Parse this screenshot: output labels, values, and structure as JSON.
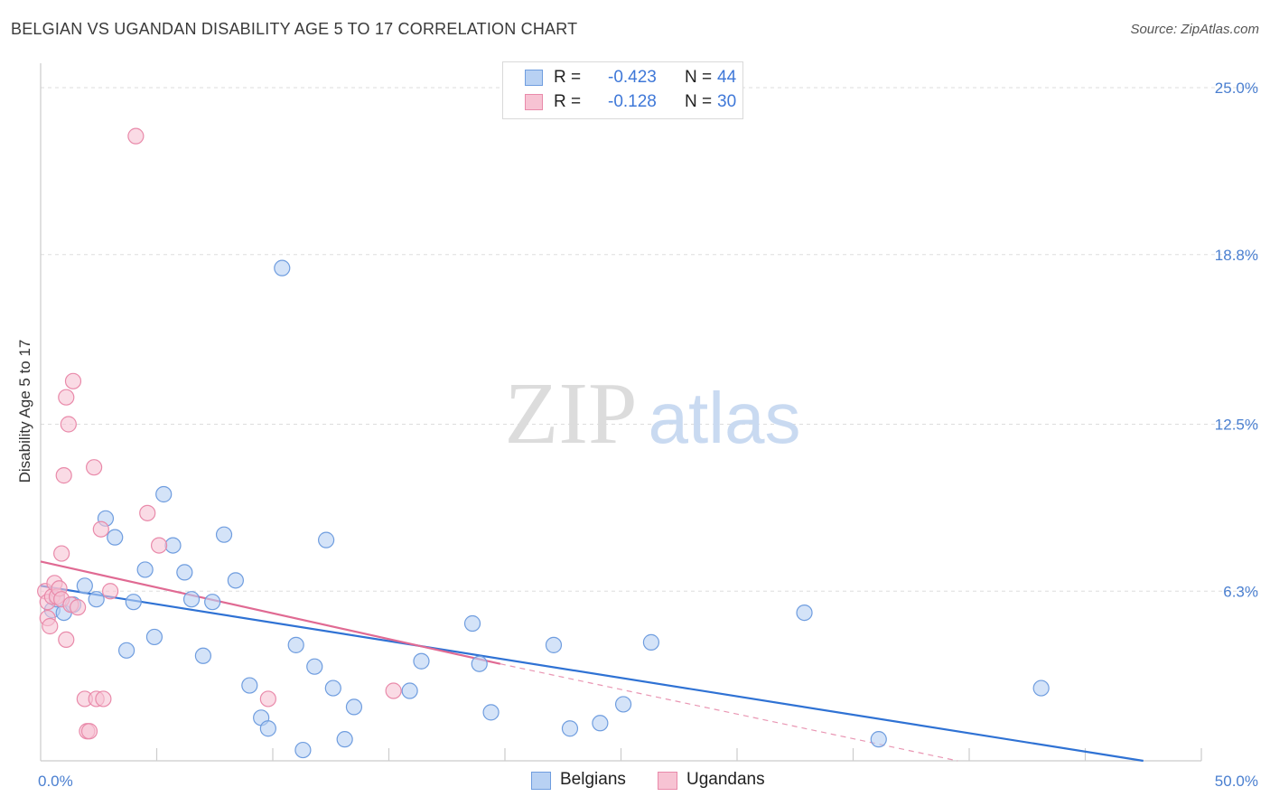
{
  "title": "BELGIAN VS UGANDAN DISABILITY AGE 5 TO 17 CORRELATION CHART",
  "source": "Source: ZipAtlas.com",
  "watermark": {
    "zip": "ZIP",
    "atlas": "atlas"
  },
  "colors": {
    "blue_fill": "#b8d1f3",
    "blue_stroke": "#6f9ddf",
    "blue_line": "#2f72d4",
    "pink_fill": "#f7c3d3",
    "pink_stroke": "#e98aaa",
    "pink_line": "#e06a93",
    "tick_text": "#4a7fd0"
  },
  "legend": {
    "rows": [
      {
        "r_label": "R =",
        "r_value": "-0.423",
        "n_label": "N =",
        "n_value": "44"
      },
      {
        "r_label": "R =",
        "r_value": "-0.128",
        "n_label": "N =",
        "n_value": "30"
      }
    ]
  },
  "bottom_legend": {
    "belgians": "Belgians",
    "ugandans": "Ugandans"
  },
  "chart_data": {
    "type": "scatter",
    "title": "BELGIAN VS UGANDAN DISABILITY AGE 5 TO 17 CORRELATION CHART",
    "xlabel": "",
    "ylabel": "Disability Age 5 to 17",
    "xlim": [
      0,
      50
    ],
    "ylim": [
      0,
      25.5
    ],
    "x_tick_labels": [
      {
        "value": 0,
        "label": "0.0%"
      },
      {
        "value": 50,
        "label": "50.0%"
      }
    ],
    "y_tick_labels": [
      {
        "value": 6.3,
        "label": "6.3%"
      },
      {
        "value": 12.5,
        "label": "12.5%"
      },
      {
        "value": 18.8,
        "label": "18.8%"
      },
      {
        "value": 25.0,
        "label": "25.0%"
      }
    ],
    "x_minor_ticks": [
      5,
      10,
      15,
      20,
      25,
      30,
      35,
      40,
      45,
      50
    ],
    "series": [
      {
        "name": "Belgians",
        "r": -0.423,
        "n": 44,
        "trend": {
          "x0": 0,
          "y0": 6.5,
          "x1": 47.5,
          "y1": 0.0
        },
        "points": [
          [
            0.5,
            5.6
          ],
          [
            0.7,
            6.0
          ],
          [
            1.0,
            5.5
          ],
          [
            1.4,
            5.8
          ],
          [
            1.9,
            6.5
          ],
          [
            2.4,
            6.0
          ],
          [
            2.8,
            9.0
          ],
          [
            3.2,
            8.3
          ],
          [
            3.7,
            4.1
          ],
          [
            4.0,
            5.9
          ],
          [
            4.5,
            7.1
          ],
          [
            4.9,
            4.6
          ],
          [
            5.3,
            9.9
          ],
          [
            5.7,
            8.0
          ],
          [
            6.2,
            7.0
          ],
          [
            6.5,
            6.0
          ],
          [
            7.0,
            3.9
          ],
          [
            7.4,
            5.9
          ],
          [
            7.9,
            8.4
          ],
          [
            8.4,
            6.7
          ],
          [
            9.0,
            2.8
          ],
          [
            9.5,
            1.6
          ],
          [
            9.8,
            1.2
          ],
          [
            10.4,
            18.3
          ],
          [
            11.0,
            4.3
          ],
          [
            11.3,
            0.4
          ],
          [
            11.8,
            3.5
          ],
          [
            12.3,
            8.2
          ],
          [
            12.6,
            2.7
          ],
          [
            13.1,
            0.8
          ],
          [
            13.5,
            2.0
          ],
          [
            15.9,
            2.6
          ],
          [
            16.4,
            3.7
          ],
          [
            18.6,
            5.1
          ],
          [
            18.9,
            3.6
          ],
          [
            19.4,
            1.8
          ],
          [
            22.1,
            4.3
          ],
          [
            22.8,
            1.2
          ],
          [
            24.1,
            1.4
          ],
          [
            25.1,
            2.1
          ],
          [
            26.3,
            4.4
          ],
          [
            32.9,
            5.5
          ],
          [
            36.1,
            0.8
          ],
          [
            43.1,
            2.7
          ]
        ]
      },
      {
        "name": "Ugandans",
        "r": -0.128,
        "n": 30,
        "trend": {
          "x0": 0,
          "y0": 7.4,
          "x1": 19.8,
          "y1": 3.6
        },
        "trend_dashed": {
          "x0": 19.8,
          "y0": 3.6,
          "x1": 39.5,
          "y1": 0.0
        },
        "points": [
          [
            0.2,
            6.3
          ],
          [
            0.3,
            5.9
          ],
          [
            0.3,
            5.3
          ],
          [
            0.4,
            5.0
          ],
          [
            0.5,
            6.1
          ],
          [
            0.6,
            6.6
          ],
          [
            0.7,
            6.1
          ],
          [
            0.8,
            6.4
          ],
          [
            0.9,
            6.0
          ],
          [
            0.9,
            7.7
          ],
          [
            1.0,
            10.6
          ],
          [
            1.1,
            13.5
          ],
          [
            1.2,
            12.5
          ],
          [
            1.1,
            4.5
          ],
          [
            1.3,
            5.8
          ],
          [
            1.4,
            14.1
          ],
          [
            1.6,
            5.7
          ],
          [
            1.9,
            2.3
          ],
          [
            2.0,
            1.1
          ],
          [
            2.1,
            1.1
          ],
          [
            2.3,
            10.9
          ],
          [
            2.4,
            2.3
          ],
          [
            2.6,
            8.6
          ],
          [
            2.7,
            2.3
          ],
          [
            3.0,
            6.3
          ],
          [
            4.1,
            23.2
          ],
          [
            4.6,
            9.2
          ],
          [
            5.1,
            8.0
          ],
          [
            9.8,
            2.3
          ],
          [
            15.2,
            2.6
          ]
        ]
      }
    ]
  }
}
